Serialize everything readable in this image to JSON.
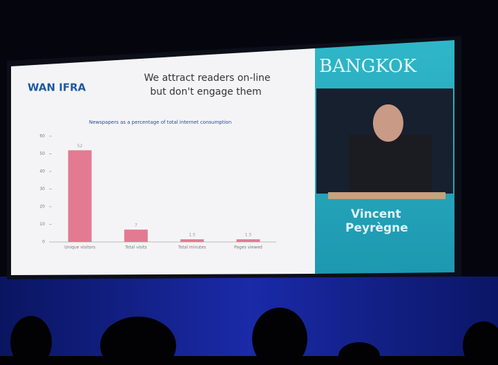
{
  "slide": {
    "logo": "WAN IFRA",
    "title_lines": [
      "We attract readers on-line",
      "but don't engage them"
    ]
  },
  "chart_data": {
    "type": "bar",
    "title": "Newspapers as a percentage of total internet consumption",
    "categories": [
      "Unique visitors",
      "Total visits",
      "Total minutes",
      "Pages viewed"
    ],
    "values": [
      52,
      7,
      1.5,
      1.5
    ],
    "color": "#e47a92",
    "ylim": [
      0,
      60
    ],
    "yticks": [
      0,
      10,
      20,
      30,
      40,
      50,
      60
    ]
  },
  "video": {
    "banner": "BANGKOK",
    "speaker_lines": [
      "Vincent",
      "Peyrègne"
    ]
  }
}
